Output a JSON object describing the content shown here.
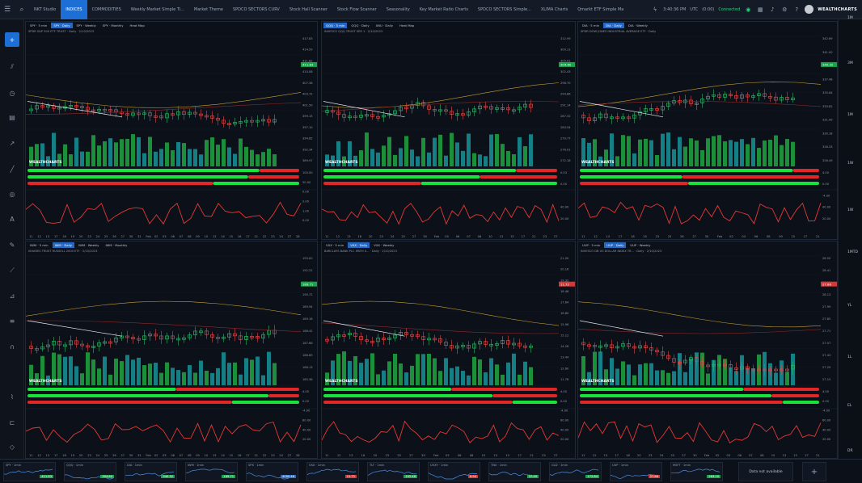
{
  "topbar": {
    "menu_icon": "hamburger-icon",
    "search_icon": "search-icon",
    "tabs": [
      {
        "label": "NKT Studio",
        "active": false
      },
      {
        "label": "INDICES",
        "active": true
      },
      {
        "label": "COMMODITIES",
        "active": false
      },
      {
        "label": "Weekly Market Simple Ti...",
        "active": false
      },
      {
        "label": "Market Theme",
        "active": false
      },
      {
        "label": "SPDCO SECTORS CURV",
        "active": false
      },
      {
        "label": "Stock Hall Scanner",
        "active": false
      },
      {
        "label": "Stock Flow Scanner",
        "active": false
      },
      {
        "label": "Seasonality",
        "active": false
      },
      {
        "label": "Key Market Ratio Charts",
        "active": false
      },
      {
        "label": "SPDCO SECTORS Simple...",
        "active": false
      },
      {
        "label": "XLIMA Charts",
        "active": false
      },
      {
        "label": "Qmarkt ETF Simple Ma",
        "active": false
      }
    ],
    "time": "3:40:36 PM",
    "tz": "UTC",
    "latency": "(0:00)",
    "connection": "Connected",
    "logo": "WEALTHCHARTS"
  },
  "colors": {
    "accent": "#1d6fd6",
    "up": "#28c76f",
    "down": "#e53935",
    "teal": "#1aa3a3",
    "gold": "#c8a033"
  },
  "panels": [
    {
      "tabs": [
        {
          "label": "SPY · 5 min",
          "sel": false
        },
        {
          "label": "SPY · Daily",
          "sel": true
        },
        {
          "label": "SPY · Weekly",
          "sel": false
        },
        {
          "label": "SPY · Monthly",
          "sel": false
        },
        {
          "label": "Heat Map",
          "sel": false
        }
      ],
      "subtitle": "SPDR S&P 500 ETF TRUST · Daily · 2/10/2023",
      "price_labels": [
        "417.83",
        "414.59",
        "411.82",
        "410.08",
        "407.36",
        "403.72",
        "401.50",
        "399.15",
        "397.10",
        "394.85",
        "392.34",
        "389.97"
      ],
      "last_price": "411.83",
      "x_labels": [
        "11",
        "12",
        "13",
        "17",
        "18",
        "19",
        "20",
        "23",
        "24",
        "25",
        "26",
        "27",
        "30",
        "31",
        "Feb",
        "02",
        "03",
        "06",
        "07",
        "08",
        "09",
        "10",
        "13",
        "14",
        "15",
        "16",
        "17",
        "21",
        "22",
        "23",
        "24",
        "27",
        "28"
      ],
      "ind_labels": [
        "100.00",
        "50.00",
        "0.00",
        "2.00",
        "1.00",
        "0.00"
      ]
    },
    {
      "tabs": [
        {
          "label": "QQQ · 5 min",
          "sel": true
        },
        {
          "label": "QQQ · Daily",
          "sel": false
        },
        {
          "label": "XNU · Daily",
          "sel": false
        },
        {
          "label": "Heat Map",
          "sel": false
        }
      ],
      "subtitle": "INVESCO QQQ TRUST SER 1 · 2/10/2023",
      "price_labels": [
        "312.99",
        "309.11",
        "305.01",
        "302.43",
        "298.70",
        "294.86",
        "291.14",
        "287.32",
        "283.54",
        "279.77",
        "276.01",
        "272.18"
      ],
      "last_price": "304.60",
      "x_labels": [
        "11",
        "12",
        "13",
        "18",
        "20",
        "23",
        "24",
        "25",
        "27",
        "30",
        "Feb",
        "03",
        "06",
        "07",
        "08",
        "10",
        "13",
        "15",
        "17",
        "21",
        "23",
        "27"
      ],
      "ind_labels": [
        "0.03",
        "0.00",
        "",
        "40.00",
        "20.00"
      ]
    },
    {
      "tabs": [
        {
          "label": "DIA · 5 min",
          "sel": false
        },
        {
          "label": "DIA · Daily",
          "sel": true
        },
        {
          "label": "DIA · Weekly",
          "sel": false
        }
      ],
      "subtitle": "SPDR DOW JONES INDUSTRIAL AVERAGE ETF · Daily",
      "price_labels": [
        "342.69",
        "341.00",
        "339.20",
        "337.48",
        "335.64",
        "333.82",
        "331.99",
        "330.18",
        "328.33",
        "326.49"
      ],
      "last_price": "340.32",
      "x_labels": [
        "11",
        "12",
        "13",
        "17",
        "18",
        "20",
        "23",
        "25",
        "26",
        "27",
        "30",
        "Feb",
        "02",
        "03",
        "06",
        "08",
        "09",
        "15",
        "17",
        "21"
      ],
      "ind_labels": [
        "4.00",
        "0.00",
        "-4.00",
        "40.00",
        "20.00"
      ]
    },
    {
      "tabs": [
        {
          "label": "IWM · 5 min",
          "sel": false
        },
        {
          "label": "IWM · Daily",
          "sel": true
        },
        {
          "label": "IWM · Weekly",
          "sel": false
        },
        {
          "label": "IWM · Monthly",
          "sel": false
        }
      ],
      "subtitle": "ISHARES TRUST RUSSELL 2000 ETF · 2/10/2023",
      "price_labels": [
        "193.00",
        "192.22",
        "191.47",
        "190.72",
        "189.94",
        "189.18",
        "188.42",
        "187.66",
        "186.89",
        "186.13",
        "185.36"
      ],
      "last_price": "189.71",
      "x_labels": [
        "11",
        "12",
        "13",
        "17",
        "18",
        "19",
        "20",
        "23",
        "24",
        "25",
        "26",
        "27",
        "30",
        "31",
        "Feb",
        "02",
        "03",
        "06",
        "07",
        "08",
        "09",
        "10",
        "13",
        "14",
        "15",
        "16",
        "17",
        "21",
        "22",
        "23",
        "24",
        "27",
        "28"
      ],
      "ind_labels": [
        "4.00",
        "0.00",
        "-4.00",
        "80.00",
        "40.00",
        "20.00"
      ]
    },
    {
      "tabs": [
        {
          "label": "VXX · 5 min",
          "sel": false
        },
        {
          "label": "VXX · Daily",
          "sel": true
        },
        {
          "label": "VXX · Weekly",
          "sel": false
        }
      ],
      "subtitle": "BARCLAYS BANK PLC IPATH S... · Daily · 2/10/2023",
      "price_labels": [
        "21.00",
        "20.16",
        "19.32",
        "18.48",
        "17.64",
        "16.80",
        "15.96",
        "15.12",
        "14.28",
        "13.44",
        "12.60",
        "11.76"
      ],
      "last_price": "11.72",
      "x_labels": [
        "11",
        "12",
        "13",
        "18",
        "20",
        "23",
        "25",
        "27",
        "30",
        "Feb",
        "03",
        "06",
        "08",
        "10",
        "13",
        "15",
        "17",
        "21",
        "23",
        "27"
      ],
      "ind_labels": [
        "4.00",
        "0.00",
        "-4.00",
        "60.00",
        "40.00",
        "20.00"
      ]
    },
    {
      "tabs": [
        {
          "label": "UUP · 5 min",
          "sel": false
        },
        {
          "label": "UUP · Daily",
          "sel": true
        },
        {
          "label": "UUP · Weekly",
          "sel": false
        }
      ],
      "subtitle": "INVESCO DB US DOLLAR INDEX TR... · Daily · 2/10/2023",
      "price_labels": [
        "28.55",
        "28.41",
        "28.27",
        "28.13",
        "27.99",
        "27.85",
        "27.71",
        "27.57",
        "27.43",
        "27.29",
        "27.15"
      ],
      "last_price": "27.86",
      "x_labels": [
        "11",
        "12",
        "13",
        "17",
        "18",
        "20",
        "23",
        "24",
        "25",
        "27",
        "30",
        "Feb",
        "02",
        "03",
        "06",
        "07",
        "08",
        "10",
        "13",
        "15",
        "17",
        "21"
      ],
      "ind_labels": [
        "4.00",
        "0.00",
        "-4.00",
        "60.00",
        "40.00",
        "20.00"
      ]
    }
  ],
  "right_axis": [
    "1M",
    "3M",
    "1M",
    "1W",
    "1W",
    "1MTD",
    "YL",
    "1L",
    "EL",
    "DR"
  ],
  "bottom": {
    "minis": [
      {
        "title": "SPY · 1min",
        "value": "411.83",
        "dir": "up"
      },
      {
        "title": "QQQ · 1min",
        "value": "304.60",
        "dir": "up"
      },
      {
        "title": "DIA · 1min",
        "value": "340.32",
        "dir": "up"
      },
      {
        "title": "IWM · 1min",
        "value": "189.71",
        "dir": "up"
      },
      {
        "title": "SPX · 1min",
        "value": "4090.46",
        "dir": "bl"
      },
      {
        "title": "VXX · 1min",
        "value": "11.72",
        "dir": "dn"
      },
      {
        "title": "TLT · 1min",
        "value": "102.48",
        "dir": "up"
      },
      {
        "title": "UVXY · 1min",
        "value": "6.94",
        "dir": "dn"
      },
      {
        "title": "TNX · 1min",
        "value": "37.49",
        "dir": "up"
      },
      {
        "title": "GLD · 1min",
        "value": "172.84",
        "dir": "up"
      },
      {
        "title": "UUP · 1min",
        "value": "27.86",
        "dir": "dn"
      },
      {
        "title": "MSFT · 1min",
        "value": "263.10",
        "dir": "up"
      }
    ],
    "no_data": "Data not available",
    "add_label": "+"
  }
}
